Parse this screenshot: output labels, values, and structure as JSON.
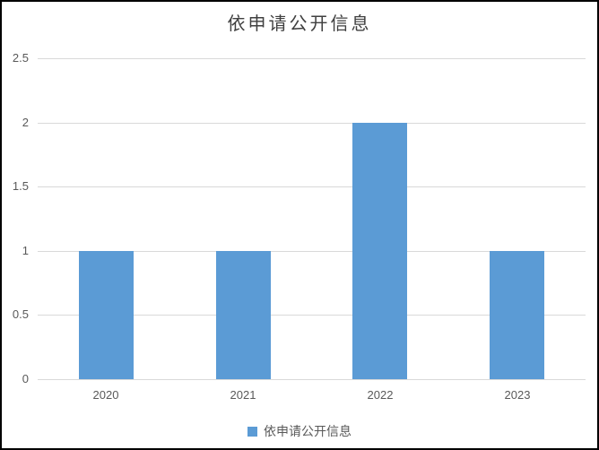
{
  "chart_data": {
    "type": "bar",
    "title": "依申请公开信息",
    "categories": [
      "2020",
      "2021",
      "2022",
      "2023"
    ],
    "series": [
      {
        "name": "依申请公开信息",
        "values": [
          1,
          1,
          2,
          1
        ],
        "color": "#5b9bd5"
      }
    ],
    "xlabel": "",
    "ylabel": "",
    "ylim": [
      0,
      2.5
    ],
    "yticks": [
      0,
      0.5,
      1,
      1.5,
      2,
      2.5
    ],
    "ytick_labels": [
      "0",
      "0.5",
      "1",
      "1.5",
      "2",
      "2.5"
    ],
    "grid": true,
    "legend_position": "bottom",
    "legend_entries": [
      "依申请公开信息"
    ]
  },
  "colors": {
    "bar": "#5b9bd5",
    "gridline": "#d9d9d9",
    "tick_label": "#595959",
    "title": "#404040",
    "frame_border": "#000000",
    "background": "#ffffff"
  }
}
